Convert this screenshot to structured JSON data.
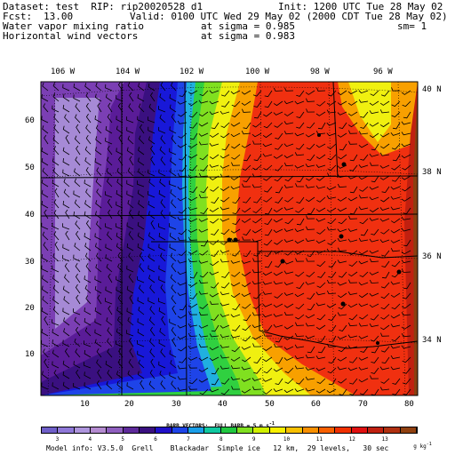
{
  "header": {
    "dataset_line": "Dataset: test  RIP: rip20020528 d1",
    "init_line": "Init: 1200 UTC Tue 28 May 02",
    "fcst_label": "Fcst:",
    "fcst_value": "13.00",
    "valid_line": "Valid: 0100 UTC Wed 29 May 02 (2000 CDT Tue 28 May 02)",
    "field1_name": "Water vapor mixing ratio",
    "field1_level": "at sigma = 0.985",
    "field1_sm": "sm= 1",
    "field2_name": "Horizontal wind vectors",
    "field2_level": "at sigma = 0.983"
  },
  "lon_labels": [
    "106 W",
    "104 W",
    "102 W",
    "100 W",
    "98 W",
    "96 W"
  ],
  "lat_labels": [
    "40 N",
    "38 N",
    "36 N",
    "34 N"
  ],
  "x_ticks": [
    "10",
    "20",
    "30",
    "40",
    "50",
    "60",
    "70",
    "80"
  ],
  "y_ticks": [
    "60",
    "50",
    "40",
    "30",
    "20",
    "10"
  ],
  "barb_note": "BARB VECTORS:  FULL BARB = 5 m s",
  "barb_unit_exp": "-1",
  "colorbar": {
    "labels": [
      "3",
      "4",
      "5",
      "6",
      "7",
      "8",
      "9",
      "10",
      "11",
      "12",
      "13"
    ],
    "units": "g kg",
    "units_exp": "-1",
    "colors": [
      "#6f5fc8",
      "#8f78d8",
      "#ae95dd",
      "#b48bd0",
      "#8f5fbe",
      "#5e2a9a",
      "#3a1080",
      "#2010c8",
      "#1e44e8",
      "#1a9ee8",
      "#10c8a0",
      "#20c840",
      "#80e020",
      "#d0f000",
      "#f8f000",
      "#f8c000",
      "#f89000",
      "#f86000",
      "#f03000",
      "#e01010",
      "#c02010",
      "#b03010",
      "#904010"
    ]
  },
  "footer": "Model info: V3.5.0  Grell    Blackadar  Simple ice   12 km,  29 levels,   30 sec",
  "map_colors": {
    "light_purple": "#a68ad6",
    "purple": "#7b3fb4",
    "deep_purple": "#5a1c98",
    "blue": "#1818d8",
    "cyan": "#20b0e0",
    "green": "#30d040",
    "yellow": "#f0f010",
    "orange": "#f8a000",
    "red": "#f03010",
    "brown": "#8a4010"
  }
}
